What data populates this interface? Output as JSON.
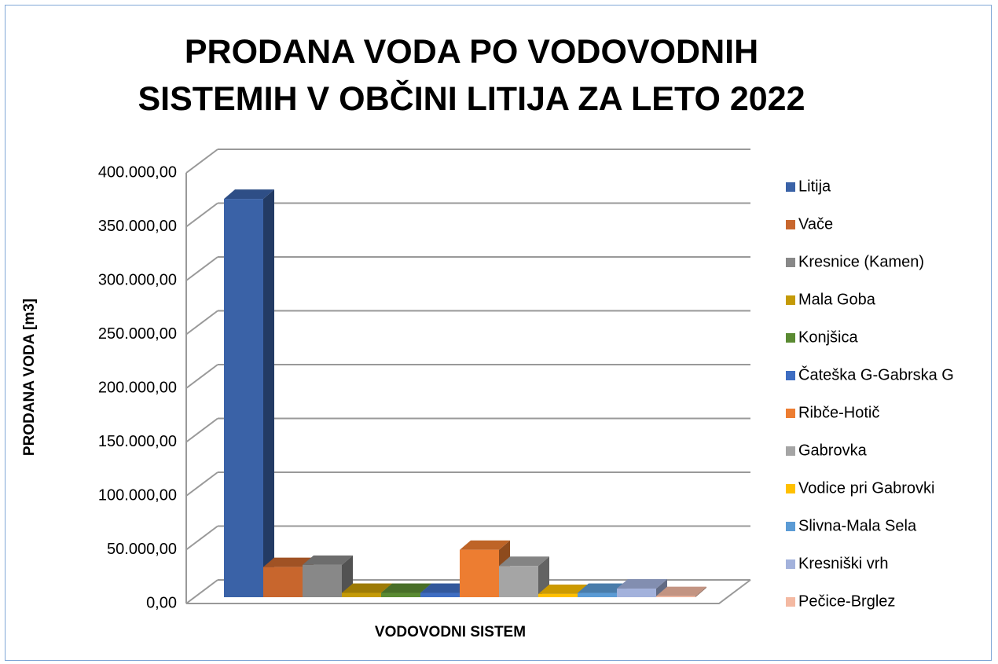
{
  "chart_data": {
    "type": "bar3d",
    "title": "PRODANA VODA PO VODOVODNIH SISTEMIH V OBČINI LITIJA ZA LETO 2022",
    "x_label": "VODOVODNI SISTEM",
    "y_label": "PRODANA VODA [m3]",
    "categories": [
      null
    ],
    "series": [
      {
        "name": "Litija",
        "color": "#3a62a7",
        "values": [
          370000
        ]
      },
      {
        "name": "Vače",
        "color": "#c8662d",
        "values": [
          28000
        ]
      },
      {
        "name": "Kresnice (Kamen)",
        "color": "#888888",
        "values": [
          30000
        ]
      },
      {
        "name": "Mala Goba",
        "color": "#c49a07",
        "values": [
          4000
        ]
      },
      {
        "name": "Konjšica",
        "color": "#5a8a32",
        "values": [
          4000
        ]
      },
      {
        "name": "Čateška G-Gabrska G",
        "color": "#3e6dc2",
        "values": [
          4000
        ]
      },
      {
        "name": "Ribče-Hotič",
        "color": "#ed7d31",
        "values": [
          44000
        ]
      },
      {
        "name": "Gabrovka",
        "color": "#a5a5a5",
        "values": [
          29000
        ]
      },
      {
        "name": "Vodice pri Gabrovki",
        "color": "#ffc000",
        "values": [
          3000
        ]
      },
      {
        "name": "Slivna-Mala Sela",
        "color": "#5b9bd5",
        "values": [
          4000
        ]
      },
      {
        "name": "Kresniški vrh",
        "color": "#a3b2dc",
        "values": [
          8000
        ]
      },
      {
        "name": "Pečice-Brglez",
        "color": "#f4b9a2",
        "values": [
          1000
        ]
      }
    ],
    "ylim": [
      0,
      400000
    ],
    "yticks": [
      {
        "value": 0,
        "label": "0,00"
      },
      {
        "value": 50000,
        "label": "50.000,00"
      },
      {
        "value": 100000,
        "label": "100.000,00"
      },
      {
        "value": 150000,
        "label": "150.000,00"
      },
      {
        "value": 200000,
        "label": "200.000,00"
      },
      {
        "value": 250000,
        "label": "250.000,00"
      },
      {
        "value": 300000,
        "label": "300.000,00"
      },
      {
        "value": 350000,
        "label": "350.000,00"
      },
      {
        "value": 400000,
        "label": "400.000,00"
      }
    ],
    "grid": true,
    "legend": "right"
  }
}
